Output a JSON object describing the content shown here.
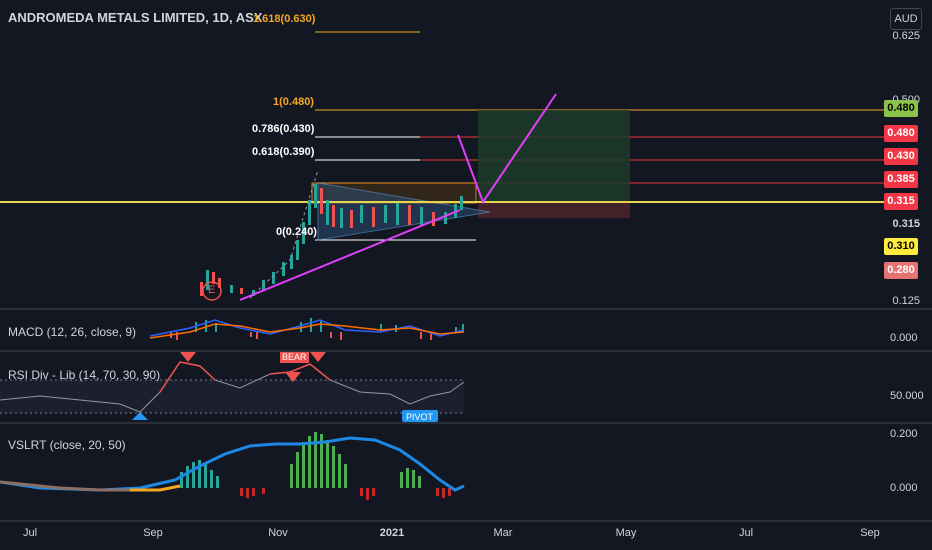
{
  "header": {
    "symbol_title": "ANDROMEDA METALS LIMITED, 1D, ASX",
    "currency": "AUD"
  },
  "fib_levels": [
    {
      "label": "1.618(0.630)",
      "color": "#f5a623"
    },
    {
      "label": "1(0.480)",
      "color": "#f5a623"
    },
    {
      "label": "0.786(0.430)",
      "color": "#ffffff"
    },
    {
      "label": "0.618(0.390)",
      "color": "#ffffff"
    },
    {
      "label": "0(0.240)",
      "color": "#ffffff"
    }
  ],
  "event_marker": "E",
  "price_axis": {
    "ticks": [
      "0.625",
      "0.500",
      "0.315",
      "0.125"
    ],
    "tags": [
      {
        "text": "0.480",
        "bg": "#8bc34a",
        "fg": "#000000"
      },
      {
        "text": "0.480",
        "bg": "#f23645",
        "fg": "#ffffff"
      },
      {
        "text": "0.430",
        "bg": "#f23645",
        "fg": "#ffffff"
      },
      {
        "text": "0.385",
        "bg": "#f23645",
        "fg": "#ffffff"
      },
      {
        "text": "0.315",
        "bg": "#f23645",
        "fg": "#ffffff"
      },
      {
        "text": "0.310",
        "bg": "#ffeb3b",
        "fg": "#000000"
      },
      {
        "text": "0.280",
        "bg": "#e57373",
        "fg": "#ffffff"
      }
    ]
  },
  "indicators": {
    "macd": {
      "title": "MACD (12, 26, close, 9)",
      "value": "0.000"
    },
    "rsi": {
      "title": "RSI Div - Lib (14, 70, 30, 90)",
      "value": "50.000",
      "bear_label": "BEAR",
      "pivot_label": "PIVOT"
    },
    "vslrt": {
      "title": "VSLRT (close, 20, 50)",
      "value_top": "0.200",
      "value_bottom": "0.000"
    }
  },
  "time_axis": [
    "Jul",
    "Sep",
    "Nov",
    "2021",
    "Mar",
    "May",
    "Jul",
    "Sep"
  ],
  "colors": {
    "background": "#131722",
    "fib_gold": "#f5a623",
    "trend_magenta": "#e040fb",
    "yellow_line": "#e8d44d",
    "target_zone": "#1f3b2a",
    "stop_zone": "#4a2229"
  }
}
